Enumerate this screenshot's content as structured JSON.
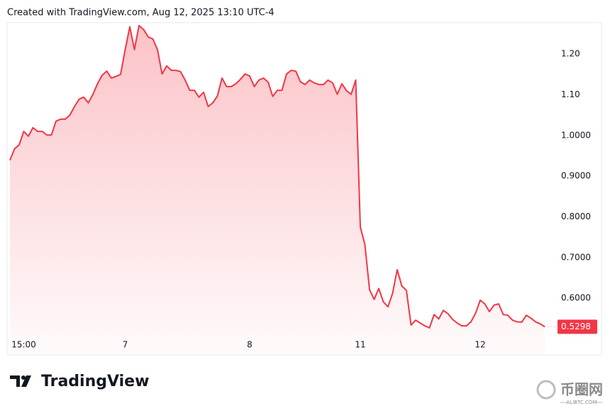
{
  "chart_data": {
    "type": "area",
    "title": "Created with TradingView.com, Aug 12, 2025 13:10 UTC-4",
    "categories": [
      null,
      null,
      null,
      "15:00",
      null,
      null,
      null,
      null,
      null,
      null,
      null,
      null,
      null,
      null,
      null,
      null,
      null,
      null,
      null,
      null,
      null,
      null,
      null,
      null,
      null,
      "7",
      null,
      null,
      null,
      null,
      null,
      null,
      null,
      null,
      null,
      null,
      null,
      null,
      null,
      null,
      null,
      null,
      null,
      null,
      null,
      null,
      null,
      null,
      null,
      null,
      null,
      null,
      "8",
      null,
      null,
      null,
      null,
      null,
      null,
      null,
      null,
      null,
      null,
      null,
      null,
      null,
      null,
      null,
      null,
      null,
      null,
      null,
      null,
      null,
      null,
      null,
      "11",
      null,
      null,
      null,
      null,
      null,
      null,
      null,
      null,
      null,
      null,
      null,
      null,
      null,
      null,
      null,
      null,
      null,
      null,
      null,
      null,
      null,
      null,
      null,
      null,
      null,
      "12",
      null,
      null,
      null,
      null,
      null,
      null,
      null,
      null,
      null,
      null,
      null,
      null,
      null,
      null
    ],
    "values": [
      0.939,
      0.967,
      0.977,
      1.01,
      0.998,
      1.019,
      1.01,
      1.01,
      1.001,
      1.001,
      1.035,
      1.04,
      1.04,
      1.05,
      1.071,
      1.089,
      1.094,
      1.08,
      1.101,
      1.127,
      1.148,
      1.158,
      1.141,
      1.145,
      1.15,
      1.211,
      1.267,
      1.211,
      1.27,
      1.26,
      1.242,
      1.237,
      1.211,
      1.151,
      1.171,
      1.16,
      1.16,
      1.157,
      1.136,
      1.111,
      1.111,
      1.094,
      1.106,
      1.071,
      1.08,
      1.097,
      1.141,
      1.12,
      1.12,
      1.127,
      1.138,
      1.151,
      1.146,
      1.12,
      1.136,
      1.141,
      1.131,
      1.096,
      1.111,
      1.111,
      1.151,
      1.16,
      1.158,
      1.132,
      1.125,
      1.136,
      1.129,
      1.125,
      1.125,
      1.136,
      1.129,
      1.101,
      1.127,
      1.11,
      1.101,
      1.136,
      0.775,
      0.731,
      0.621,
      0.597,
      0.624,
      0.591,
      0.579,
      0.612,
      0.67,
      0.63,
      0.619,
      0.534,
      0.546,
      0.539,
      0.532,
      0.527,
      0.56,
      0.549,
      0.57,
      0.562,
      0.548,
      0.539,
      0.532,
      0.532,
      0.542,
      0.563,
      0.595,
      0.586,
      0.567,
      0.583,
      0.586,
      0.56,
      0.558,
      0.546,
      0.542,
      0.541,
      0.558,
      0.551,
      0.542,
      0.537,
      0.5298
    ],
    "color": "#f23645",
    "ylim": [
      0.513,
      1.277
    ],
    "yticks": [
      {
        "value": 0.6,
        "label": "0.6000"
      },
      {
        "value": 0.7,
        "label": "0.7000"
      },
      {
        "value": 0.8,
        "label": "0.8000"
      },
      {
        "value": 0.9,
        "label": "0.9000"
      },
      {
        "value": 1.0,
        "label": "1.0000"
      },
      {
        "value": 1.1,
        "label": "1.10"
      },
      {
        "value": 1.2,
        "label": "1.20"
      }
    ],
    "grid": false
  },
  "footer": {
    "brand": "TradingView",
    "watermark": "币圈网",
    "watermark_sub": "ALIBTC.COM"
  }
}
